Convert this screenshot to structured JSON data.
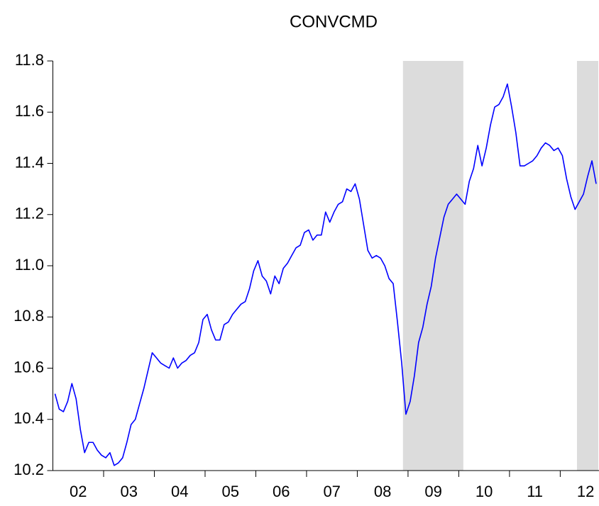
{
  "chart_data": {
    "type": "line",
    "title": "CONVCMD",
    "xlim": [
      2002,
      2012.75
    ],
    "ylim": [
      10.2,
      11.8
    ],
    "yticks": [
      {
        "value": 10.2,
        "label": "10.2"
      },
      {
        "value": 10.4,
        "label": "10.4"
      },
      {
        "value": 10.6,
        "label": "10.6"
      },
      {
        "value": 10.8,
        "label": "10.8"
      },
      {
        "value": 11.0,
        "label": "11.0"
      },
      {
        "value": 11.2,
        "label": "11.2"
      },
      {
        "value": 11.4,
        "label": "11.4"
      },
      {
        "value": 11.6,
        "label": "11.6"
      },
      {
        "value": 11.8,
        "label": "11.8"
      }
    ],
    "xticks": [
      {
        "value": 2002.5,
        "label": "02"
      },
      {
        "value": 2003.5,
        "label": "03"
      },
      {
        "value": 2004.5,
        "label": "04"
      },
      {
        "value": 2005.5,
        "label": "05"
      },
      {
        "value": 2006.5,
        "label": "06"
      },
      {
        "value": 2007.5,
        "label": "07"
      },
      {
        "value": 2008.5,
        "label": "08"
      },
      {
        "value": 2009.5,
        "label": "09"
      },
      {
        "value": 2010.5,
        "label": "10"
      },
      {
        "value": 2011.5,
        "label": "11"
      },
      {
        "value": 2012.5,
        "label": "12"
      }
    ],
    "xminorticks": [
      2003,
      2004,
      2005,
      2006,
      2007,
      2008,
      2009,
      2010,
      2011,
      2012
    ],
    "shaded_regions": [
      [
        2008.9,
        2010.09
      ],
      [
        2012.33,
        2012.75
      ]
    ],
    "shade_color": "#dcdcdc",
    "grid": false,
    "x": [
      2002.042,
      2002.125,
      2002.208,
      2002.292,
      2002.375,
      2002.458,
      2002.542,
      2002.625,
      2002.708,
      2002.792,
      2002.875,
      2002.958,
      2003.042,
      2003.125,
      2003.208,
      2003.292,
      2003.375,
      2003.458,
      2003.542,
      2003.625,
      2003.708,
      2003.792,
      2003.875,
      2003.958,
      2004.042,
      2004.125,
      2004.208,
      2004.292,
      2004.375,
      2004.458,
      2004.542,
      2004.625,
      2004.708,
      2004.792,
      2004.875,
      2004.958,
      2005.042,
      2005.125,
      2005.208,
      2005.292,
      2005.375,
      2005.458,
      2005.542,
      2005.625,
      2005.708,
      2005.792,
      2005.875,
      2005.958,
      2006.042,
      2006.125,
      2006.208,
      2006.292,
      2006.375,
      2006.458,
      2006.542,
      2006.625,
      2006.708,
      2006.792,
      2006.875,
      2006.958,
      2007.042,
      2007.125,
      2007.208,
      2007.292,
      2007.375,
      2007.458,
      2007.542,
      2007.625,
      2007.708,
      2007.792,
      2007.875,
      2007.958,
      2008.042,
      2008.125,
      2008.208,
      2008.292,
      2008.375,
      2008.458,
      2008.542,
      2008.625,
      2008.708,
      2008.792,
      2008.875,
      2008.958,
      2009.042,
      2009.125,
      2009.208,
      2009.292,
      2009.375,
      2009.458,
      2009.542,
      2009.625,
      2009.708,
      2009.792,
      2009.875,
      2009.958,
      2010.042,
      2010.125,
      2010.208,
      2010.292,
      2010.375,
      2010.458,
      2010.542,
      2010.625,
      2010.708,
      2010.792,
      2010.875,
      2010.958,
      2011.042,
      2011.125,
      2011.208,
      2011.292,
      2011.375,
      2011.458,
      2011.542,
      2011.625,
      2011.708,
      2011.792,
      2011.875,
      2011.958,
      2012.042,
      2012.125,
      2012.208,
      2012.292,
      2012.375,
      2012.458,
      2012.542,
      2012.625,
      2012.708
    ],
    "series": [
      {
        "color": "#0000ff",
        "values": [
          10.5,
          10.44,
          10.43,
          10.47,
          10.54,
          10.48,
          10.36,
          10.27,
          10.31,
          10.31,
          10.28,
          10.26,
          10.25,
          10.27,
          10.22,
          10.23,
          10.25,
          10.31,
          10.38,
          10.4,
          10.46,
          10.52,
          10.59,
          10.66,
          10.64,
          10.62,
          10.61,
          10.6,
          10.64,
          10.6,
          10.62,
          10.63,
          10.65,
          10.66,
          10.7,
          10.79,
          10.81,
          10.75,
          10.71,
          10.71,
          10.77,
          10.78,
          10.81,
          10.83,
          10.85,
          10.86,
          10.91,
          10.98,
          11.02,
          10.96,
          10.94,
          10.89,
          10.96,
          10.93,
          10.99,
          11.01,
          11.04,
          11.07,
          11.08,
          11.13,
          11.14,
          11.1,
          11.12,
          11.12,
          11.21,
          11.17,
          11.21,
          11.24,
          11.25,
          11.3,
          11.29,
          11.32,
          11.26,
          11.16,
          11.06,
          11.03,
          11.04,
          11.03,
          11.0,
          10.95,
          10.93,
          10.78,
          10.62,
          10.42,
          10.47,
          10.57,
          10.7,
          10.76,
          10.85,
          10.92,
          11.03,
          11.11,
          11.19,
          11.24,
          11.26,
          11.28,
          11.26,
          11.24,
          11.33,
          11.38,
          11.47,
          11.39,
          11.46,
          11.55,
          11.62,
          11.63,
          11.66,
          11.71,
          11.62,
          11.52,
          11.39,
          11.39,
          11.4,
          11.41,
          11.43,
          11.46,
          11.48,
          11.47,
          11.45,
          11.46,
          11.43,
          11.34,
          11.27,
          11.22,
          11.25,
          11.28,
          11.35,
          11.41,
          11.32
        ]
      }
    ]
  }
}
